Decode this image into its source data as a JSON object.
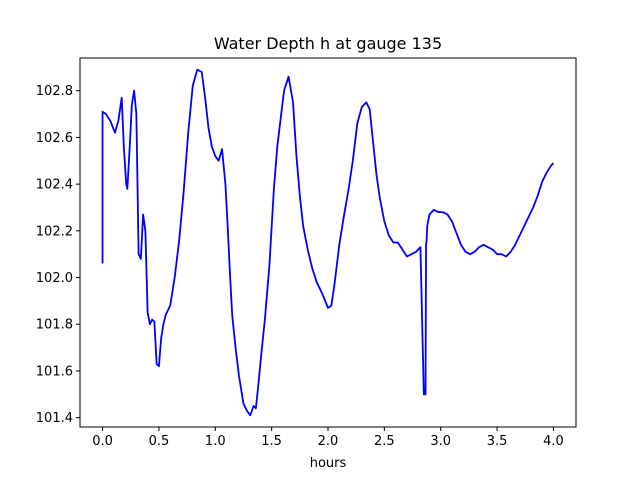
{
  "chart_data": {
    "type": "line",
    "title": "Water Depth h at gauge 135",
    "xlabel": "hours",
    "ylabel": "",
    "xlim": [
      -0.2,
      4.2
    ],
    "ylim": [
      101.36,
      102.94
    ],
    "xticks": [
      0.0,
      0.5,
      1.0,
      1.5,
      2.0,
      2.5,
      3.0,
      3.5,
      4.0
    ],
    "xtick_labels": [
      "0.0",
      "0.5",
      "1.0",
      "1.5",
      "2.0",
      "2.5",
      "3.0",
      "3.5",
      "4.0"
    ],
    "yticks": [
      101.4,
      101.6,
      101.8,
      102.0,
      102.2,
      102.4,
      102.6,
      102.8
    ],
    "ytick_labels": [
      "101.4",
      "101.6",
      "101.8",
      "102.0",
      "102.2",
      "102.4",
      "102.6",
      "102.8"
    ],
    "grid": false,
    "legend": false,
    "series": [
      {
        "color": "#0000ff",
        "x": [
          0.0,
          0.0,
          0.03,
          0.07,
          0.11,
          0.14,
          0.17,
          0.19,
          0.21,
          0.22,
          0.24,
          0.26,
          0.28,
          0.3,
          0.32,
          0.34,
          0.36,
          0.38,
          0.4,
          0.42,
          0.44,
          0.46,
          0.48,
          0.5,
          0.52,
          0.54,
          0.56,
          0.58,
          0.6,
          0.64,
          0.68,
          0.72,
          0.76,
          0.8,
          0.84,
          0.88,
          0.91,
          0.94,
          0.97,
          1.0,
          1.03,
          1.06,
          1.09,
          1.11,
          1.13,
          1.15,
          1.18,
          1.21,
          1.25,
          1.28,
          1.31,
          1.34,
          1.36,
          1.38,
          1.39,
          1.41,
          1.44,
          1.48,
          1.52,
          1.55,
          1.58,
          1.61,
          1.65,
          1.69,
          1.72,
          1.75,
          1.78,
          1.82,
          1.86,
          1.9,
          1.95,
          2.0,
          2.03,
          2.06,
          2.08,
          2.1,
          2.14,
          2.18,
          2.22,
          2.26,
          2.3,
          2.34,
          2.37,
          2.4,
          2.43,
          2.46,
          2.5,
          2.54,
          2.58,
          2.62,
          2.66,
          2.7,
          2.74,
          2.78,
          2.82,
          2.85,
          2.865,
          2.87,
          2.875,
          2.88,
          2.9,
          2.94,
          2.98,
          3.02,
          3.06,
          3.1,
          3.14,
          3.18,
          3.22,
          3.26,
          3.3,
          3.34,
          3.38,
          3.42,
          3.46,
          3.5,
          3.54,
          3.58,
          3.62,
          3.66,
          3.7,
          3.74,
          3.78,
          3.82,
          3.86,
          3.9,
          3.94,
          3.98,
          4.0
        ],
        "y": [
          102.06,
          102.71,
          102.7,
          102.67,
          102.62,
          102.67,
          102.77,
          102.55,
          102.4,
          102.38,
          102.55,
          102.74,
          102.8,
          102.7,
          102.1,
          102.08,
          102.27,
          102.2,
          101.85,
          101.8,
          101.82,
          101.81,
          101.63,
          101.62,
          101.74,
          101.8,
          101.84,
          101.86,
          101.88,
          102.0,
          102.16,
          102.37,
          102.62,
          102.82,
          102.89,
          102.88,
          102.77,
          102.64,
          102.56,
          102.52,
          102.5,
          102.55,
          102.4,
          102.22,
          102.02,
          101.84,
          101.7,
          101.58,
          101.46,
          101.43,
          101.41,
          101.45,
          101.44,
          101.53,
          101.58,
          101.68,
          101.82,
          102.05,
          102.38,
          102.56,
          102.68,
          102.8,
          102.86,
          102.75,
          102.52,
          102.35,
          102.22,
          102.12,
          102.04,
          101.98,
          101.93,
          101.87,
          101.88,
          101.98,
          102.06,
          102.14,
          102.26,
          102.37,
          102.5,
          102.66,
          102.73,
          102.75,
          102.72,
          102.58,
          102.44,
          102.34,
          102.24,
          102.18,
          102.15,
          102.15,
          102.12,
          102.09,
          102.1,
          102.11,
          102.13,
          101.5,
          101.5,
          102.14,
          102.16,
          102.22,
          102.27,
          102.29,
          102.28,
          102.28,
          102.27,
          102.24,
          102.19,
          102.14,
          102.11,
          102.1,
          102.11,
          102.13,
          102.14,
          102.13,
          102.12,
          102.1,
          102.1,
          102.09,
          102.11,
          102.14,
          102.18,
          102.22,
          102.26,
          102.3,
          102.35,
          102.41,
          102.45,
          102.48,
          102.49
        ]
      }
    ]
  }
}
